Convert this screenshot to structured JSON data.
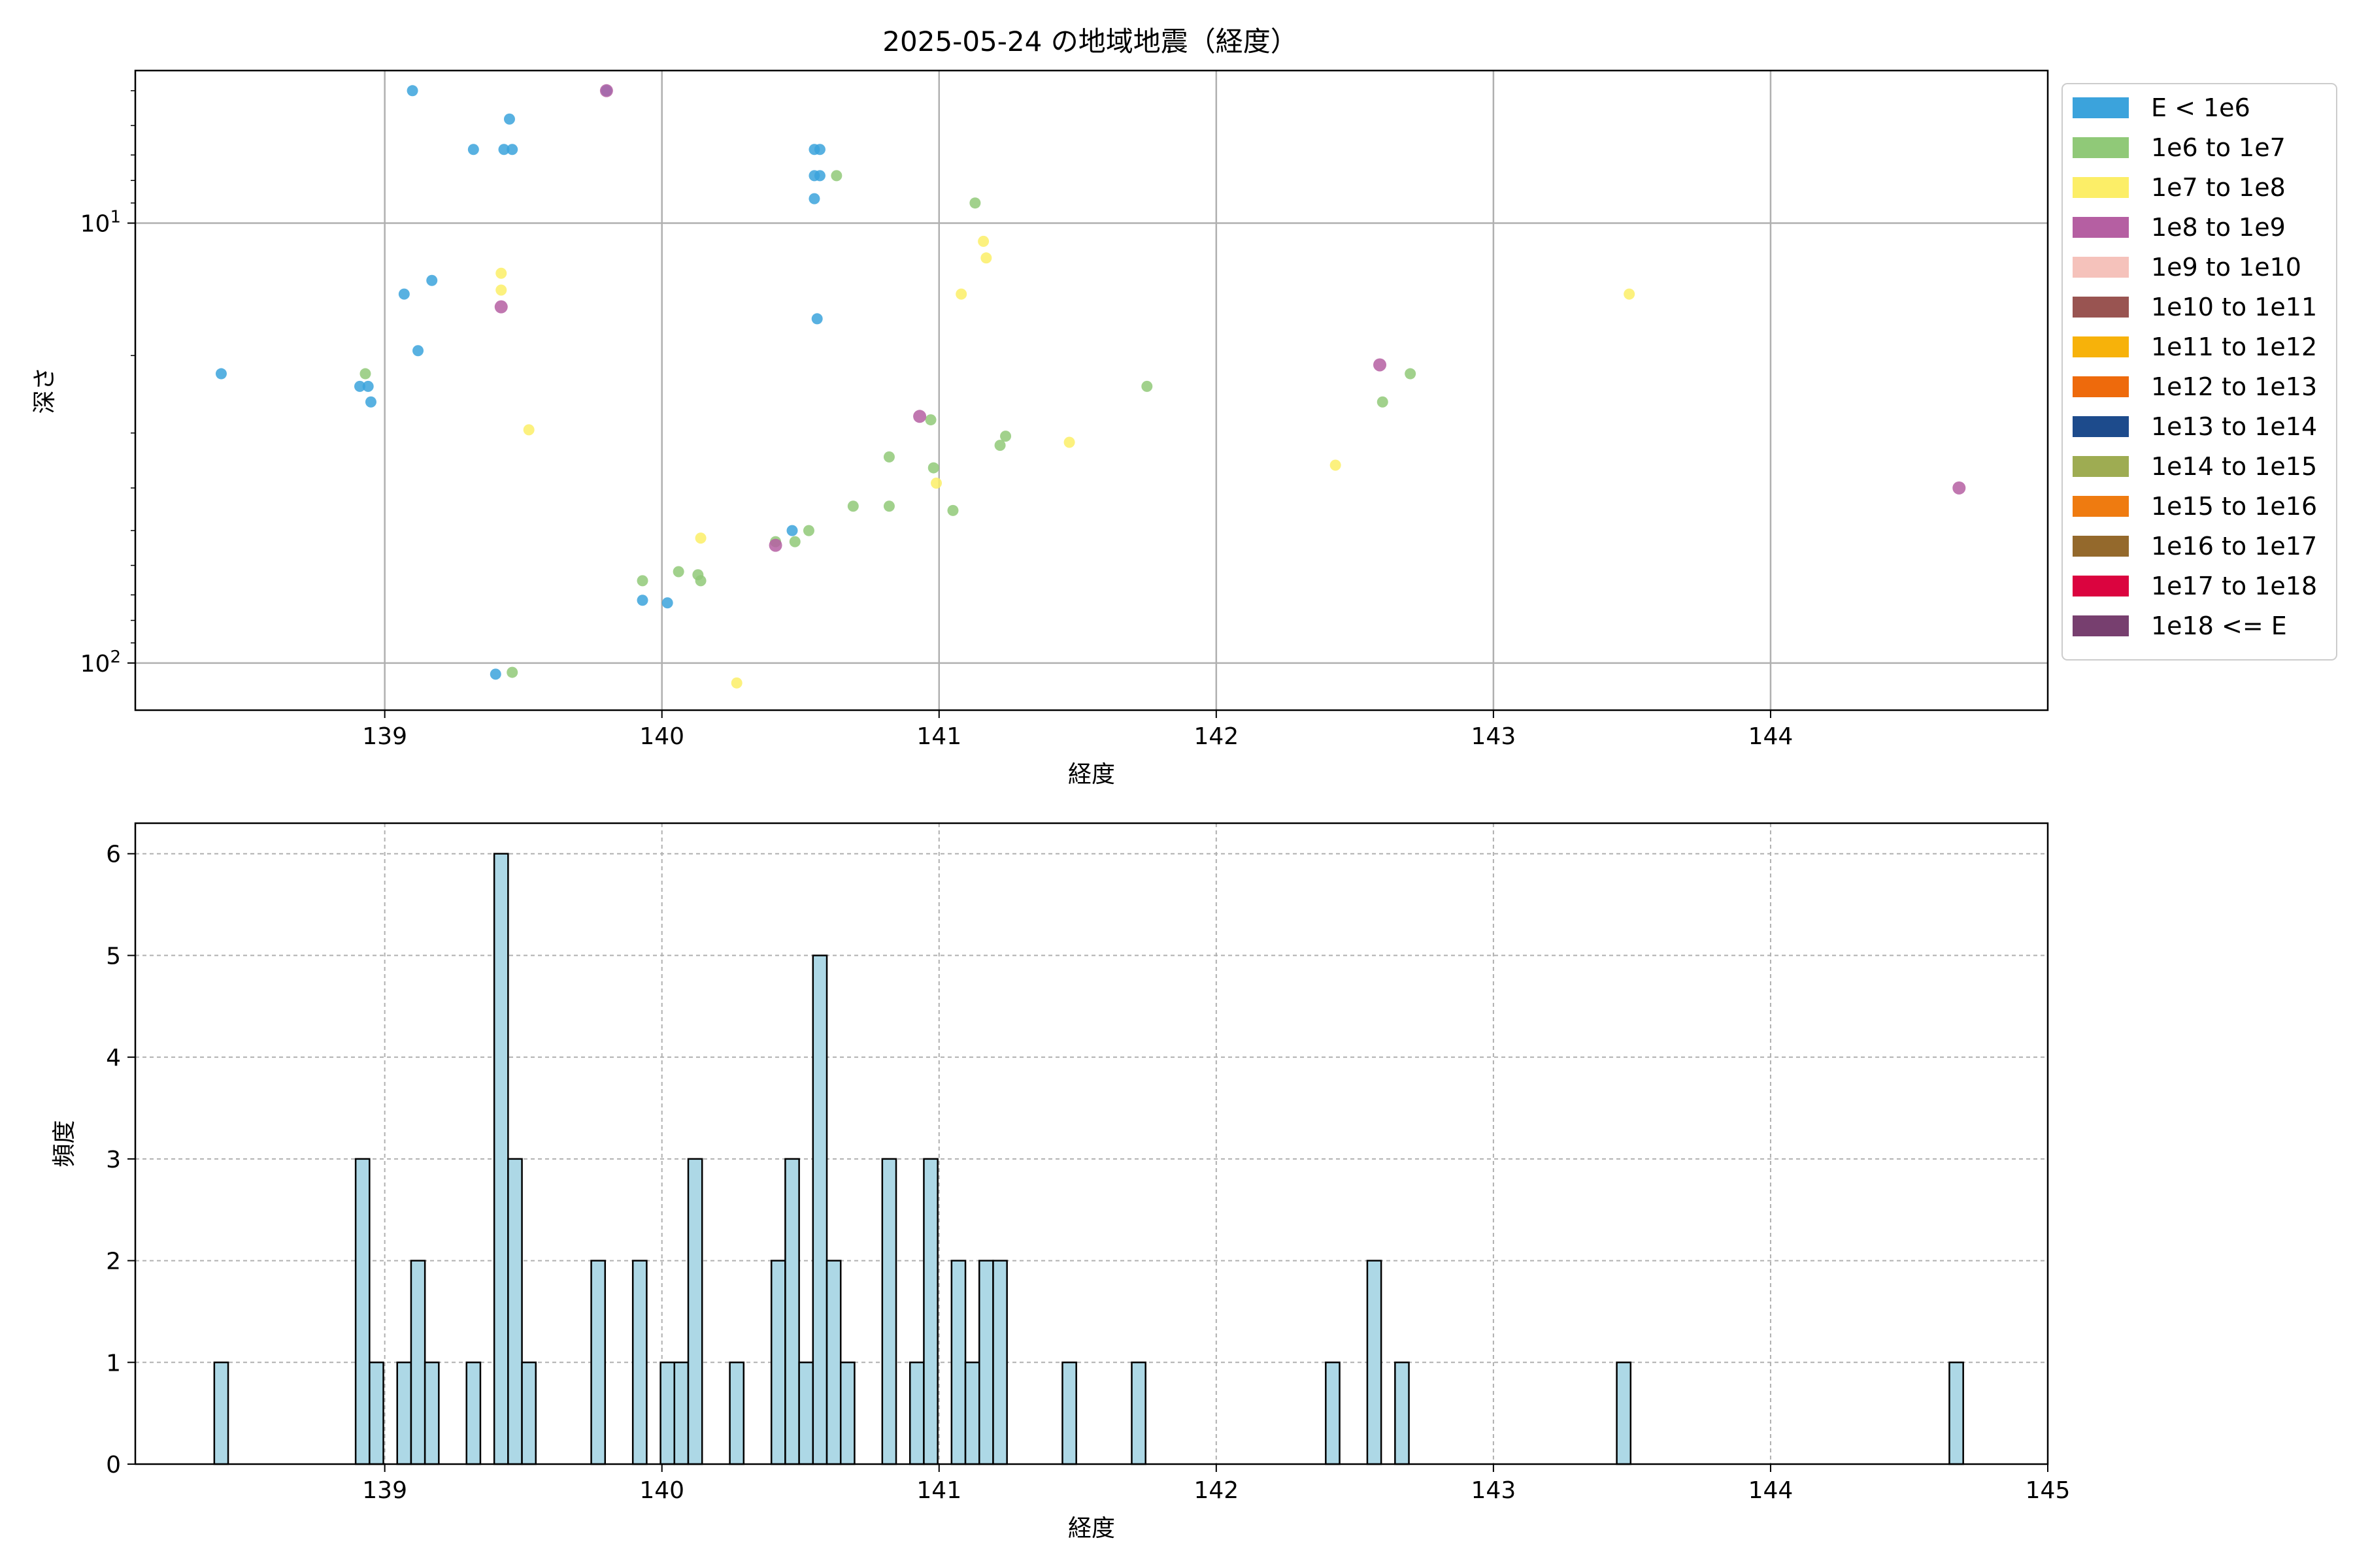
{
  "title": "2025-05-24 の地域地震（経度）",
  "chart_data": [
    {
      "type": "scatter",
      "title": "2025-05-24 の地域地震（経度）",
      "xlabel": "経度",
      "ylabel": "深さ",
      "xlim": [
        138.1,
        145.0
      ],
      "ylim": [
        128,
        4.5
      ],
      "y_scale": "log",
      "y_inverted": true,
      "grid": true,
      "x_ticks": [
        "139",
        "140",
        "141",
        "142",
        "143",
        "144"
      ],
      "y_ticks": [
        {
          "value": 10,
          "base": "10",
          "exp": "1"
        },
        {
          "value": 100,
          "base": "10",
          "exp": "2"
        }
      ],
      "legend_position": "outside-right",
      "legend": [
        {
          "label": "E < 1e6",
          "color": "#3ba3dc"
        },
        {
          "label": "1e6 to 1e7",
          "color": "#90c978"
        },
        {
          "label": "1e7 to 1e8",
          "color": "#fcee67"
        },
        {
          "label": "1e8 to 1e9",
          "color": "#b55fa2"
        },
        {
          "label": "1e9 to 1e10",
          "color": "#f5c2bb"
        },
        {
          "label": "1e10 to 1e11",
          "color": "#995451"
        },
        {
          "label": "1e11 to 1e12",
          "color": "#f7b20a"
        },
        {
          "label": "1e12 to 1e13",
          "color": "#ee6a0c"
        },
        {
          "label": "1e13 to 1e14",
          "color": "#1d4b8c"
        },
        {
          "label": "1e14 to 1e15",
          "color": "#9eac52"
        },
        {
          "label": "1e15 to 1e16",
          "color": "#ef7b10"
        },
        {
          "label": "1e16 to 1e17",
          "color": "#94692c"
        },
        {
          "label": "1e17 to 1e18",
          "color": "#db043f"
        },
        {
          "label": "1e18 <= E",
          "color": "#773f6f"
        }
      ],
      "series": [
        {
          "name": "E < 1e6",
          "points": [
            [
              138.41,
              22
            ],
            [
              138.91,
              23.5
            ],
            [
              138.94,
              23.5
            ],
            [
              138.95,
              25.5
            ],
            [
              139.07,
              14.5
            ],
            [
              139.12,
              19.5
            ],
            [
              139.17,
              13.5
            ],
            [
              139.1,
              5.0
            ],
            [
              139.32,
              6.8
            ],
            [
              139.43,
              6.8
            ],
            [
              139.46,
              6.8
            ],
            [
              139.45,
              5.8
            ],
            [
              139.8,
              5.0
            ],
            [
              139.93,
              72
            ],
            [
              140.02,
              73
            ],
            [
              139.4,
              106
            ],
            [
              140.47,
              50
            ],
            [
              140.55,
              6.8
            ],
            [
              140.57,
              6.8
            ],
            [
              140.55,
              7.8
            ],
            [
              140.57,
              7.8
            ],
            [
              140.55,
              8.8
            ],
            [
              140.56,
              16.5
            ]
          ]
        },
        {
          "name": "1e6 to 1e7",
          "points": [
            [
              138.93,
              22
            ],
            [
              139.46,
              105
            ],
            [
              139.93,
              65
            ],
            [
              140.06,
              62
            ],
            [
              140.13,
              63
            ],
            [
              140.14,
              65
            ],
            [
              140.41,
              53
            ],
            [
              140.48,
              53
            ],
            [
              140.53,
              50
            ],
            [
              140.63,
              7.8
            ],
            [
              140.69,
              44
            ],
            [
              140.82,
              44
            ],
            [
              140.82,
              34
            ],
            [
              140.97,
              28
            ],
            [
              140.98,
              36
            ],
            [
              141.05,
              45
            ],
            [
              141.13,
              9.0
            ],
            [
              141.22,
              32
            ],
            [
              141.24,
              30.5
            ],
            [
              141.75,
              23.5
            ],
            [
              142.6,
              25.5
            ],
            [
              142.7,
              22
            ]
          ]
        },
        {
          "name": "1e7 to 1e8",
          "points": [
            [
              139.42,
              13
            ],
            [
              139.42,
              14.2
            ],
            [
              139.52,
              29.5
            ],
            [
              140.14,
              52
            ],
            [
              140.27,
              111
            ],
            [
              140.99,
              39
            ],
            [
              141.08,
              14.5
            ],
            [
              141.16,
              11
            ],
            [
              141.17,
              12
            ],
            [
              141.47,
              31.5
            ],
            [
              142.43,
              35.5
            ],
            [
              143.49,
              14.5
            ]
          ]
        },
        {
          "name": "1e8 to 1e9",
          "points": [
            [
              139.42,
              15.5
            ],
            [
              139.8,
              5.0
            ],
            [
              140.41,
              54
            ],
            [
              140.93,
              27.5
            ],
            [
              142.59,
              21
            ],
            [
              144.68,
              40
            ]
          ]
        }
      ]
    },
    {
      "type": "bar",
      "subtype": "histogram",
      "xlabel": "経度",
      "ylabel": "頻度",
      "xlim": [
        138.1,
        145.0
      ],
      "ylim": [
        0,
        6.3
      ],
      "grid": "dashed",
      "bar_color": "#add8e6",
      "edge_color": "#000000",
      "bin_width": 0.05,
      "x_ticks": [
        "139",
        "140",
        "141",
        "142",
        "143",
        "144",
        "145"
      ],
      "y_ticks": [
        "0",
        "1",
        "2",
        "3",
        "4",
        "5",
        "6"
      ],
      "bins": [
        {
          "x": 138.41,
          "count": 1
        },
        {
          "x": 138.92,
          "count": 3
        },
        {
          "x": 138.97,
          "count": 1
        },
        {
          "x": 139.07,
          "count": 1
        },
        {
          "x": 139.12,
          "count": 2
        },
        {
          "x": 139.17,
          "count": 1
        },
        {
          "x": 139.32,
          "count": 1
        },
        {
          "x": 139.42,
          "count": 6
        },
        {
          "x": 139.47,
          "count": 3
        },
        {
          "x": 139.52,
          "count": 1
        },
        {
          "x": 139.77,
          "count": 2
        },
        {
          "x": 139.92,
          "count": 2
        },
        {
          "x": 140.02,
          "count": 1
        },
        {
          "x": 140.07,
          "count": 1
        },
        {
          "x": 140.12,
          "count": 3
        },
        {
          "x": 140.27,
          "count": 1
        },
        {
          "x": 140.42,
          "count": 2
        },
        {
          "x": 140.47,
          "count": 3
        },
        {
          "x": 140.52,
          "count": 1
        },
        {
          "x": 140.57,
          "count": 5
        },
        {
          "x": 140.62,
          "count": 2
        },
        {
          "x": 140.67,
          "count": 1
        },
        {
          "x": 140.82,
          "count": 3
        },
        {
          "x": 140.92,
          "count": 1
        },
        {
          "x": 140.97,
          "count": 3
        },
        {
          "x": 141.07,
          "count": 2
        },
        {
          "x": 141.12,
          "count": 1
        },
        {
          "x": 141.17,
          "count": 2
        },
        {
          "x": 141.22,
          "count": 2
        },
        {
          "x": 141.47,
          "count": 1
        },
        {
          "x": 141.72,
          "count": 1
        },
        {
          "x": 142.42,
          "count": 1
        },
        {
          "x": 142.57,
          "count": 2
        },
        {
          "x": 142.67,
          "count": 1
        },
        {
          "x": 143.47,
          "count": 1
        },
        {
          "x": 144.67,
          "count": 1
        }
      ]
    }
  ]
}
